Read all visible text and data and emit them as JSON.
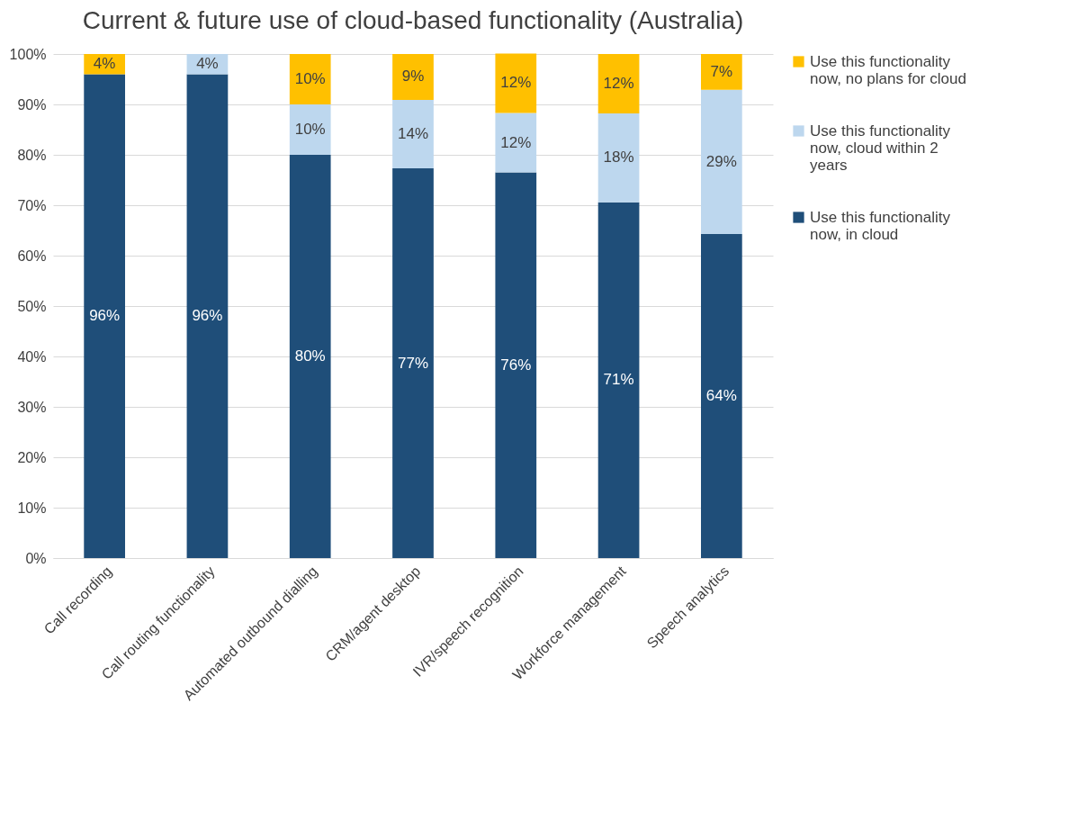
{
  "chart_data": {
    "type": "bar",
    "stacked": true,
    "title": "Current & future use of cloud-based functionality (Australia)",
    "categories": [
      "Call recording",
      "Call routing functionality",
      "Automated outbound dialling",
      "CRM/agent desktop",
      "IVR/speech recognition",
      "Workforce management",
      "Speech analytics"
    ],
    "series": [
      {
        "name": "Use this functionality now, in cloud",
        "color": "#1f4e79",
        "values": [
          96,
          96,
          80,
          77.3,
          76.5,
          70.6,
          64.3
        ],
        "value_labels": [
          "96%",
          "96%",
          "80%",
          "77%",
          "76%",
          "71%",
          "64%"
        ]
      },
      {
        "name": "Use this functionality now, cloud within 2 years",
        "color": "#bdd7ee",
        "values": [
          null,
          4,
          10,
          13.6,
          11.8,
          17.6,
          28.6
        ],
        "value_labels": [
          null,
          "4%",
          "10%",
          "14%",
          "12%",
          "18%",
          "29%"
        ]
      },
      {
        "name": "Use this functionality now, no plans for cloud",
        "color": "#ffc000",
        "values": [
          4,
          null,
          10,
          9.1,
          11.8,
          11.8,
          7.1
        ],
        "value_labels": [
          "4%",
          null,
          "10%",
          "9%",
          "12%",
          "12%",
          "7%"
        ]
      }
    ],
    "ylim": [
      0,
      100
    ],
    "yticks": [
      {
        "value": 0,
        "label": "0%"
      },
      {
        "value": 10,
        "label": "10%"
      },
      {
        "value": 20,
        "label": "20%"
      },
      {
        "value": 30,
        "label": "30%"
      },
      {
        "value": 40,
        "label": "40%"
      },
      {
        "value": 50,
        "label": "50%"
      },
      {
        "value": 60,
        "label": "60%"
      },
      {
        "value": 70,
        "label": "70%"
      },
      {
        "value": 80,
        "label": "80%"
      },
      {
        "value": 90,
        "label": "90%"
      },
      {
        "value": 100,
        "label": "100%"
      }
    ],
    "grid": "y",
    "legend": "right"
  }
}
